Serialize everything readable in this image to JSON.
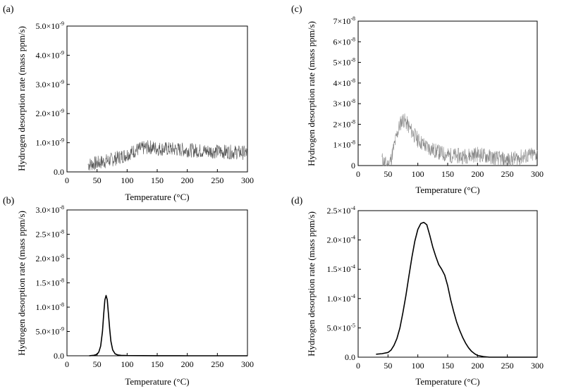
{
  "chart_data": [
    {
      "panel": "(a)",
      "type": "line",
      "style": "noisy",
      "line_color": "#555555",
      "xlabel": "Temperature (°C)",
      "ylabel": "Hydrogen desorption rate (mass ppm/s)",
      "xlim": [
        0,
        300
      ],
      "ylim": [
        0,
        5e-09
      ],
      "xticks": [
        "0",
        "50",
        "100",
        "150",
        "200",
        "250",
        "300"
      ],
      "yticks": [
        {
          "mant": "0.0",
          "exp": ""
        },
        {
          "mant": "1.0×10",
          "exp": "-9"
        },
        {
          "mant": "2.0×10",
          "exp": "-9"
        },
        {
          "mant": "3.0×10",
          "exp": "-9"
        },
        {
          "mant": "4.0×10",
          "exp": "-9"
        },
        {
          "mant": "5.0×10",
          "exp": "-9"
        }
      ],
      "x": [
        35,
        50,
        75,
        100,
        115,
        130,
        140,
        150,
        175,
        200,
        225,
        250,
        275,
        300
      ],
      "y": [
        2.5e-10,
        3e-10,
        4.2e-10,
        6e-10,
        7.5e-10,
        8.3e-10,
        8.5e-10,
        8e-10,
        7.8e-10,
        7.5e-10,
        7.2e-10,
        7e-10,
        6.8e-10,
        6.5e-10
      ]
    },
    {
      "panel": "(b)",
      "type": "line",
      "style": "smooth",
      "line_color": "#000000",
      "xlabel": "Temperature (°C)",
      "ylabel": "Hydrogen desorption rate (mass ppm/s)",
      "xlim": [
        0,
        300
      ],
      "ylim": [
        0,
        3e-08
      ],
      "xticks": [
        "0",
        "50",
        "100",
        "150",
        "200",
        "250",
        "300"
      ],
      "yticks": [
        {
          "mant": "0.0",
          "exp": ""
        },
        {
          "mant": "5.0×10",
          "exp": "-9"
        },
        {
          "mant": "1.0×10",
          "exp": "-8"
        },
        {
          "mant": "1.5×10",
          "exp": "-8"
        },
        {
          "mant": "2.0×10",
          "exp": "-8"
        },
        {
          "mant": "2.5×10",
          "exp": "-8"
        },
        {
          "mant": "3.0×10",
          "exp": "-8"
        }
      ],
      "x": [
        37,
        45,
        50,
        53,
        56,
        59,
        61,
        63,
        65,
        67,
        69,
        71,
        73,
        76,
        80,
        85,
        90,
        100,
        150,
        200,
        250,
        300
      ],
      "y": [
        0.0,
        1e-10,
        3e-10,
        8e-10,
        2e-09,
        5e-09,
        8.5e-09,
        1.15e-08,
        1.24e-08,
        1.15e-08,
        8.5e-09,
        5.5e-09,
        3e-09,
        1.2e-09,
        4e-10,
        1.5e-10,
        8e-11,
        4e-11,
        1e-11,
        0.0,
        0.0,
        0.0
      ]
    },
    {
      "panel": "(c)",
      "type": "line",
      "style": "noisy",
      "line_color": "#888888",
      "xlabel": "Temperature (°C)",
      "ylabel": "Hydrogen desorption rate (mass ppm/s)",
      "xlim": [
        0,
        300
      ],
      "ylim": [
        0,
        7e-08
      ],
      "xticks": [
        "0",
        "50",
        "100",
        "150",
        "200",
        "250",
        "300"
      ],
      "yticks": [
        {
          "mant": "0",
          "exp": ""
        },
        {
          "mant": "1×10",
          "exp": "-8"
        },
        {
          "mant": "2×10",
          "exp": "-8"
        },
        {
          "mant": "3×10",
          "exp": "-8"
        },
        {
          "mant": "4×10",
          "exp": "-8"
        },
        {
          "mant": "5×10",
          "exp": "-8"
        },
        {
          "mant": "6×10",
          "exp": "-8"
        },
        {
          "mant": "7×10",
          "exp": "-8"
        }
      ],
      "x": [
        40,
        45,
        50,
        55,
        60,
        65,
        70,
        75,
        80,
        90,
        100,
        115,
        130,
        150,
        175,
        200,
        225,
        250,
        265,
        280,
        300
      ],
      "y": [
        3e-09,
        1e-09,
        0.0,
        3e-09,
        9e-09,
        1.5e-08,
        2e-08,
        2.25e-08,
        2.1e-08,
        1.65e-08,
        1.25e-08,
        9e-09,
        7e-09,
        5e-09,
        4.5e-09,
        5.5e-09,
        4e-09,
        2.5e-09,
        3.5e-09,
        4.5e-09,
        5.5e-09
      ]
    },
    {
      "panel": "(d)",
      "type": "line",
      "style": "smooth",
      "line_color": "#000000",
      "xlabel": "Temperature (°C)",
      "ylabel": "Hydrogen desorption rate (mass ppm/s)",
      "xlim": [
        0,
        300
      ],
      "ylim": [
        0,
        0.00025
      ],
      "xticks": [
        "0",
        "50",
        "100",
        "150",
        "200",
        "250",
        "300"
      ],
      "yticks": [
        {
          "mant": "0.0",
          "exp": ""
        },
        {
          "mant": "5.0×10",
          "exp": "-5"
        },
        {
          "mant": "1.0×10",
          "exp": "-4"
        },
        {
          "mant": "1.5×10",
          "exp": "-4"
        },
        {
          "mant": "2.0×10",
          "exp": "-4"
        },
        {
          "mant": "2.5×10",
          "exp": "-4"
        }
      ],
      "x": [
        30,
        40,
        50,
        55,
        60,
        65,
        70,
        75,
        80,
        85,
        90,
        95,
        100,
        105,
        110,
        115,
        120,
        125,
        130,
        135,
        140,
        145,
        150,
        155,
        160,
        165,
        170,
        175,
        180,
        185,
        190,
        195,
        200,
        210,
        220,
        250,
        300
      ],
      "y": [
        5e-06,
        6e-06,
        8e-06,
        1.2e-05,
        2e-05,
        3.2e-05,
        5e-05,
        7.6e-05,
        0.000105,
        0.000138,
        0.00017,
        0.000198,
        0.000218,
        0.000228,
        0.00023,
        0.000226,
        0.000208,
        0.000188,
        0.000172,
        0.000158,
        0.00015,
        0.00014,
        0.000122,
        9.8e-05,
        7.8e-05,
        6e-05,
        4.6e-05,
        3.4e-05,
        2.4e-05,
        1.6e-05,
        1e-05,
        6e-06,
        3e-06,
        1e-06,
        0.0,
        0.0,
        0.0
      ]
    }
  ]
}
